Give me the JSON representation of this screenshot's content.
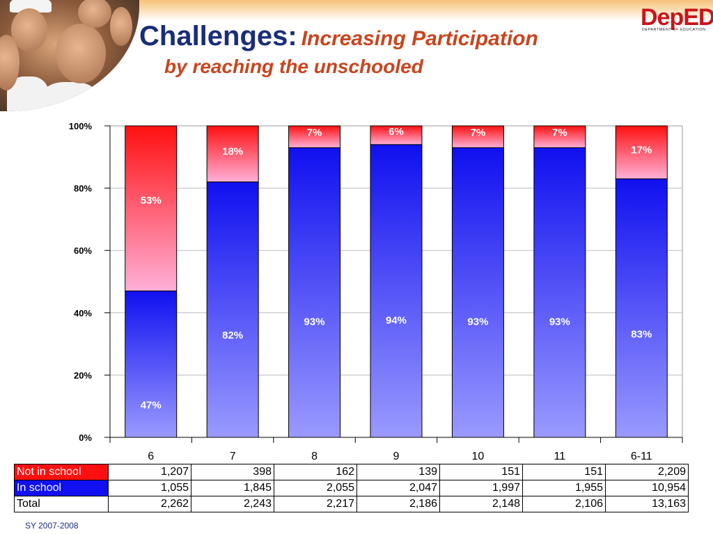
{
  "title": {
    "main": "Challenges:",
    "emphasis": "Increasing Participation",
    "subtitle": "by reaching the unschooled"
  },
  "logo": {
    "text": "DepED",
    "subtext": "DEPARTMENT OF EDUCATION"
  },
  "colors": {
    "in_school_top": "#1010f0",
    "in_school_bottom": "#9a9aff",
    "not_in_school_top": "#ff1010",
    "not_in_school_bottom": "#ffb0d8",
    "title_blue": "#1a2d7a",
    "title_accent": "#c8451e"
  },
  "chart_data": {
    "type": "bar",
    "stacked": true,
    "categories": [
      "6",
      "7",
      "8",
      "9",
      "10",
      "11",
      "6-11"
    ],
    "series": [
      {
        "name": "In school",
        "values": [
          47,
          82,
          93,
          94,
          93,
          93,
          83
        ],
        "labels": [
          "47%",
          "82%",
          "93%",
          "94%",
          "93%",
          "93%",
          "83%"
        ]
      },
      {
        "name": "Not in school",
        "values": [
          53,
          18,
          7,
          6,
          7,
          7,
          17
        ],
        "labels": [
          "53%",
          "18%",
          "7%",
          "6%",
          "7%",
          "7%",
          "17%"
        ]
      }
    ],
    "ylim": [
      0,
      100
    ],
    "yticks": [
      "0%",
      "20%",
      "40%",
      "60%",
      "80%",
      "100%"
    ],
    "grid": true
  },
  "table": {
    "rows": [
      {
        "label": "Not in school",
        "values": [
          "1,207",
          "398",
          "162",
          "139",
          "151",
          "151",
          "2,209"
        ]
      },
      {
        "label": "In school",
        "values": [
          "1,055",
          "1,845",
          "2,055",
          "2,047",
          "1,997",
          "1,955",
          "10,954"
        ]
      },
      {
        "label": "Total",
        "values": [
          "2,262",
          "2,243",
          "2,217",
          "2,186",
          "2,148",
          "2,106",
          "13,163"
        ]
      }
    ]
  },
  "source": "SY 2007-2008"
}
